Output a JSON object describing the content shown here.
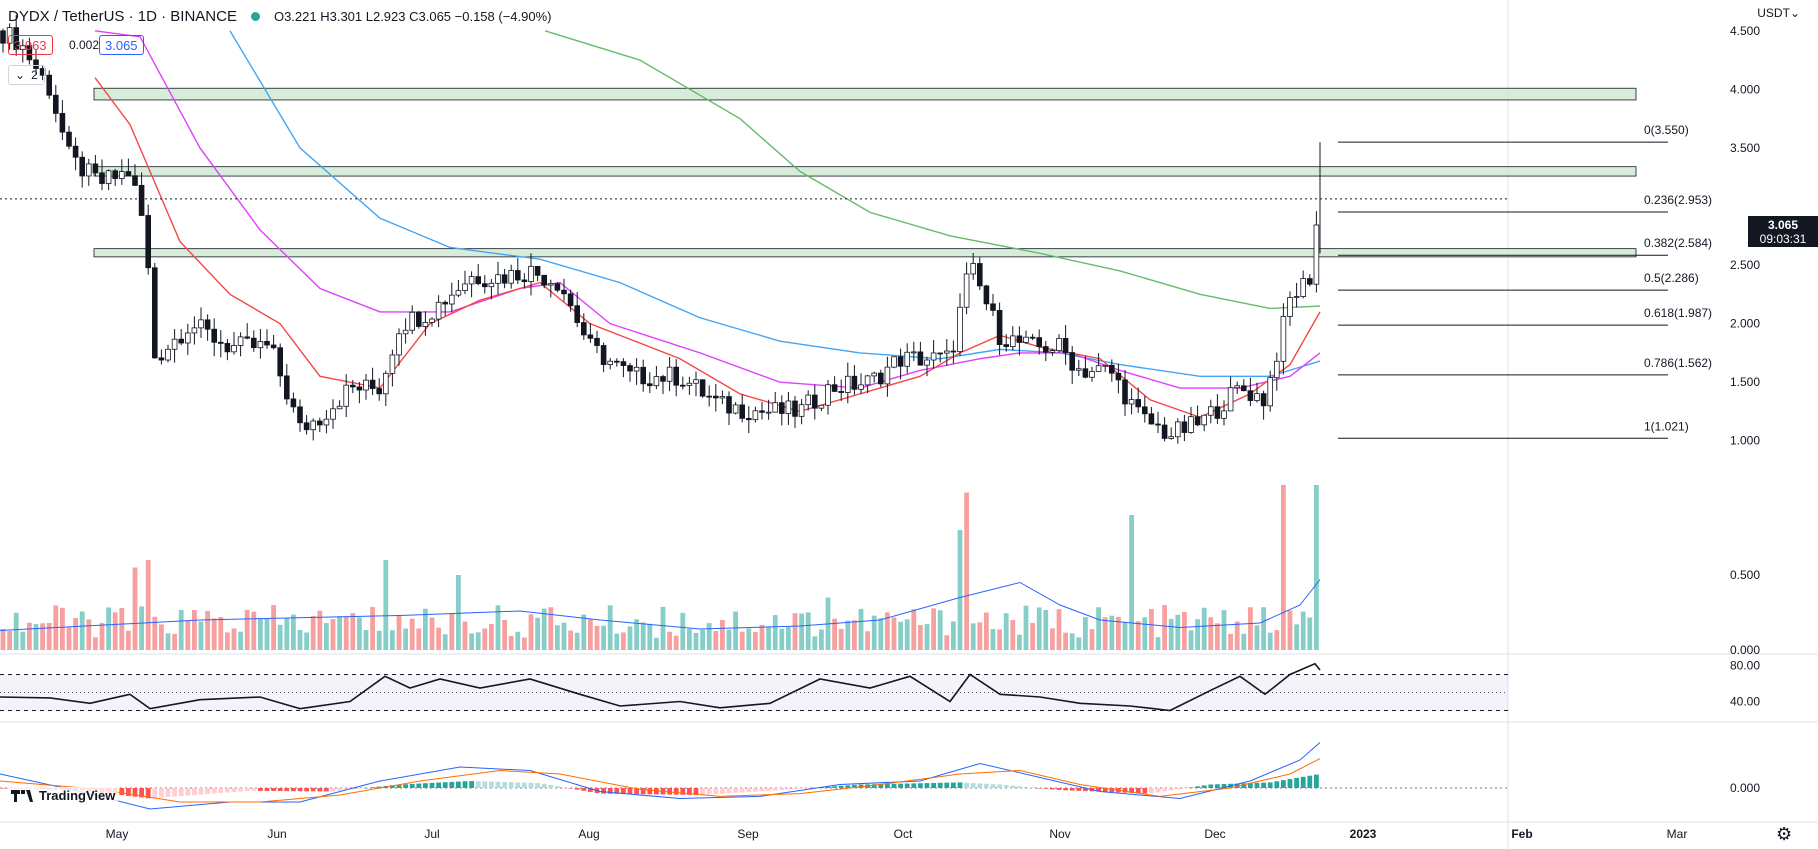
{
  "header": {
    "symbol": "DYDX / TetherUS · 1D · BINANCE",
    "status_color": "#26a69a",
    "ohlc": "O3.221  H3.301  L2.923  C3.065  −0.158 (−4.90%)",
    "bid": "3.063",
    "spread": "0.002",
    "ask": "3.065",
    "indicator_count": "2",
    "currency": "USDT"
  },
  "last_price": {
    "value": "3.065",
    "countdown": "09:03:31"
  },
  "branding": {
    "logo": "TradingView",
    "settings_icon": "gear-icon"
  },
  "colors": {
    "up": "#26a69a",
    "down": "#ef5350",
    "ema20": "#f44747",
    "ema50": "#e040fb",
    "ema100": "#42a5f5",
    "ema200": "#66bb6a",
    "rsi": "#131722",
    "zone": "#c8e6c9"
  },
  "chart_data": [
    {
      "type": "candlestick",
      "title": "",
      "y_ticks": [
        "4.500",
        "4.000",
        "3.500",
        "3.000",
        "2.500",
        "2.000",
        "1.500",
        "1.000"
      ],
      "x_ticks": [
        "May",
        "Jun",
        "Jul",
        "Aug",
        "Sep",
        "Oct",
        "Nov",
        "Dec",
        "2023",
        "Feb",
        "Mar"
      ],
      "resistance_zones": [
        [
          3.91,
          4.01
        ],
        [
          3.26,
          3.34
        ],
        [
          2.57,
          2.64
        ]
      ],
      "fibonacci": [
        {
          "label": "0(3.550)",
          "value": 3.55
        },
        {
          "label": "0.236(2.953)",
          "value": 2.953
        },
        {
          "label": "0.382(2.584)",
          "value": 2.584
        },
        {
          "label": "0.5(2.286)",
          "value": 2.286
        },
        {
          "label": "0.618(1.987)",
          "value": 1.987
        },
        {
          "label": "0.786(1.562)",
          "value": 1.562
        },
        {
          "label": "1(1.021)",
          "value": 1.021
        }
      ],
      "close_path": [
        [
          0,
          4.5
        ],
        [
          20,
          4.4
        ],
        [
          50,
          4.0
        ],
        [
          70,
          3.4
        ],
        [
          100,
          3.2
        ],
        [
          130,
          3.3
        ],
        [
          145,
          2.8
        ],
        [
          155,
          1.7
        ],
        [
          190,
          2.0
        ],
        [
          230,
          1.8
        ],
        [
          270,
          1.8
        ],
        [
          300,
          1.1
        ],
        [
          320,
          1.2
        ],
        [
          350,
          1.45
        ],
        [
          380,
          1.45
        ],
        [
          400,
          2.0
        ],
        [
          430,
          2.1
        ],
        [
          470,
          2.4
        ],
        [
          500,
          2.4
        ],
        [
          530,
          2.45
        ],
        [
          560,
          2.35
        ],
        [
          590,
          1.8
        ],
        [
          630,
          1.55
        ],
        [
          680,
          1.55
        ],
        [
          720,
          1.3
        ],
        [
          760,
          1.25
        ],
        [
          800,
          1.25
        ],
        [
          830,
          1.45
        ],
        [
          870,
          1.5
        ],
        [
          900,
          1.7
        ],
        [
          950,
          1.7
        ],
        [
          970,
          2.5
        ],
        [
          1000,
          1.9
        ],
        [
          1030,
          1.8
        ],
        [
          1060,
          1.8
        ],
        [
          1080,
          1.6
        ],
        [
          1110,
          1.6
        ],
        [
          1140,
          1.2
        ],
        [
          1170,
          1.05
        ],
        [
          1200,
          1.15
        ],
        [
          1240,
          1.45
        ],
        [
          1265,
          1.35
        ],
        [
          1290,
          2.2
        ],
        [
          1310,
          2.4
        ],
        [
          1320,
          3.1
        ]
      ],
      "ema20": [
        [
          95,
          4.1
        ],
        [
          130,
          3.7
        ],
        [
          180,
          2.7
        ],
        [
          230,
          2.25
        ],
        [
          280,
          2.0
        ],
        [
          320,
          1.55
        ],
        [
          380,
          1.45
        ],
        [
          430,
          2.0
        ],
        [
          480,
          2.2
        ],
        [
          540,
          2.35
        ],
        [
          590,
          2.0
        ],
        [
          680,
          1.7
        ],
        [
          740,
          1.4
        ],
        [
          800,
          1.25
        ],
        [
          860,
          1.4
        ],
        [
          920,
          1.55
        ],
        [
          960,
          1.75
        ],
        [
          1000,
          1.9
        ],
        [
          1040,
          1.8
        ],
        [
          1100,
          1.7
        ],
        [
          1150,
          1.35
        ],
        [
          1200,
          1.2
        ],
        [
          1250,
          1.4
        ],
        [
          1290,
          1.65
        ],
        [
          1320,
          2.1
        ]
      ],
      "ema50": [
        [
          95,
          4.5
        ],
        [
          140,
          4.45
        ],
        [
          200,
          3.5
        ],
        [
          260,
          2.8
        ],
        [
          320,
          2.3
        ],
        [
          380,
          2.1
        ],
        [
          450,
          2.1
        ],
        [
          520,
          2.3
        ],
        [
          560,
          2.35
        ],
        [
          610,
          2.0
        ],
        [
          700,
          1.75
        ],
        [
          780,
          1.5
        ],
        [
          860,
          1.45
        ],
        [
          920,
          1.6
        ],
        [
          980,
          1.7
        ],
        [
          1020,
          1.75
        ],
        [
          1070,
          1.75
        ],
        [
          1120,
          1.6
        ],
        [
          1180,
          1.45
        ],
        [
          1240,
          1.45
        ],
        [
          1290,
          1.55
        ],
        [
          1320,
          1.75
        ]
      ],
      "ema100": [
        [
          230,
          4.5
        ],
        [
          300,
          3.5
        ],
        [
          380,
          2.9
        ],
        [
          450,
          2.65
        ],
        [
          540,
          2.55
        ],
        [
          620,
          2.35
        ],
        [
          700,
          2.05
        ],
        [
          780,
          1.85
        ],
        [
          860,
          1.75
        ],
        [
          940,
          1.7
        ],
        [
          1000,
          1.78
        ],
        [
          1060,
          1.75
        ],
        [
          1120,
          1.65
        ],
        [
          1200,
          1.55
        ],
        [
          1270,
          1.55
        ],
        [
          1320,
          1.68
        ]
      ],
      "ema200": [
        [
          545,
          4.5
        ],
        [
          640,
          4.25
        ],
        [
          740,
          3.75
        ],
        [
          800,
          3.3
        ],
        [
          870,
          2.95
        ],
        [
          950,
          2.75
        ],
        [
          1040,
          2.6
        ],
        [
          1120,
          2.45
        ],
        [
          1200,
          2.25
        ],
        [
          1270,
          2.13
        ],
        [
          1320,
          2.15
        ]
      ],
      "last_spike_high": 3.55
    },
    {
      "type": "bar",
      "title": "",
      "y_ticks": [
        "0.500",
        "0.000"
      ],
      "scale_max": 1.1,
      "spikes": [
        [
          133,
          0.55
        ],
        [
          147,
          0.6
        ],
        [
          388,
          0.6
        ],
        [
          458,
          0.5
        ],
        [
          830,
          0.35
        ],
        [
          957,
          0.8
        ],
        [
          967,
          1.05
        ],
        [
          1134,
          0.9
        ],
        [
          1286,
          1.1
        ],
        [
          1314,
          1.1
        ],
        [
          1320,
          0.6
        ]
      ],
      "ma_path": [
        [
          0,
          0.13
        ],
        [
          200,
          0.2
        ],
        [
          400,
          0.23
        ],
        [
          520,
          0.26
        ],
        [
          600,
          0.2
        ],
        [
          700,
          0.14
        ],
        [
          800,
          0.16
        ],
        [
          880,
          0.2
        ],
        [
          960,
          0.35
        ],
        [
          1020,
          0.45
        ],
        [
          1060,
          0.3
        ],
        [
          1100,
          0.2
        ],
        [
          1180,
          0.15
        ],
        [
          1260,
          0.18
        ],
        [
          1300,
          0.3
        ],
        [
          1320,
          0.47
        ]
      ]
    },
    {
      "type": "line",
      "title": "",
      "y_ticks": [
        "80.00",
        "40.00"
      ],
      "bands": [
        70,
        50,
        30
      ],
      "rsi_path": [
        [
          0,
          45
        ],
        [
          50,
          44
        ],
        [
          90,
          38
        ],
        [
          130,
          48
        ],
        [
          150,
          32
        ],
        [
          200,
          42
        ],
        [
          260,
          45
        ],
        [
          300,
          32
        ],
        [
          350,
          40
        ],
        [
          385,
          68
        ],
        [
          410,
          55
        ],
        [
          440,
          65
        ],
        [
          480,
          55
        ],
        [
          530,
          65
        ],
        [
          580,
          48
        ],
        [
          620,
          35
        ],
        [
          680,
          40
        ],
        [
          720,
          33
        ],
        [
          770,
          38
        ],
        [
          820,
          65
        ],
        [
          870,
          55
        ],
        [
          910,
          68
        ],
        [
          950,
          40
        ],
        [
          970,
          70
        ],
        [
          1000,
          48
        ],
        [
          1040,
          45
        ],
        [
          1080,
          38
        ],
        [
          1130,
          35
        ],
        [
          1170,
          30
        ],
        [
          1210,
          52
        ],
        [
          1240,
          68
        ],
        [
          1265,
          48
        ],
        [
          1290,
          70
        ],
        [
          1315,
          82
        ],
        [
          1320,
          75
        ]
      ]
    },
    {
      "type": "bar",
      "title": "",
      "y_ticks": [
        "0.000"
      ],
      "histogram_envelope": [
        [
          0,
          0
        ],
        [
          80,
          -0.03
        ],
        [
          150,
          -0.15
        ],
        [
          250,
          -0.04
        ],
        [
          330,
          -0.05
        ],
        [
          400,
          0.05
        ],
        [
          470,
          0.1
        ],
        [
          540,
          0.07
        ],
        [
          600,
          -0.08
        ],
        [
          700,
          -0.1
        ],
        [
          780,
          -0.03
        ],
        [
          860,
          0.05
        ],
        [
          960,
          0.08
        ],
        [
          1000,
          0.05
        ],
        [
          1060,
          -0.03
        ],
        [
          1150,
          -0.08
        ],
        [
          1210,
          0.05
        ],
        [
          1270,
          0.08
        ],
        [
          1320,
          0.2
        ]
      ],
      "macd_path": [
        [
          0,
          0.2
        ],
        [
          80,
          -0.05
        ],
        [
          150,
          -0.3
        ],
        [
          230,
          -0.2
        ],
        [
          300,
          -0.2
        ],
        [
          380,
          0.1
        ],
        [
          460,
          0.3
        ],
        [
          530,
          0.25
        ],
        [
          600,
          -0.05
        ],
        [
          680,
          -0.15
        ],
        [
          760,
          -0.12
        ],
        [
          840,
          0.05
        ],
        [
          920,
          0.1
        ],
        [
          980,
          0.35
        ],
        [
          1040,
          0.15
        ],
        [
          1100,
          -0.05
        ],
        [
          1180,
          -0.15
        ],
        [
          1250,
          0.1
        ],
        [
          1300,
          0.4
        ],
        [
          1320,
          0.65
        ]
      ],
      "signal_path": [
        [
          0,
          0.1
        ],
        [
          100,
          -0.02
        ],
        [
          180,
          -0.2
        ],
        [
          260,
          -0.2
        ],
        [
          340,
          -0.1
        ],
        [
          420,
          0.1
        ],
        [
          500,
          0.25
        ],
        [
          560,
          0.2
        ],
        [
          640,
          -0.02
        ],
        [
          720,
          -0.12
        ],
        [
          800,
          -0.08
        ],
        [
          880,
          0.05
        ],
        [
          960,
          0.2
        ],
        [
          1020,
          0.25
        ],
        [
          1080,
          0.05
        ],
        [
          1160,
          -0.12
        ],
        [
          1230,
          0.0
        ],
        [
          1290,
          0.2
        ],
        [
          1320,
          0.42
        ]
      ]
    }
  ]
}
